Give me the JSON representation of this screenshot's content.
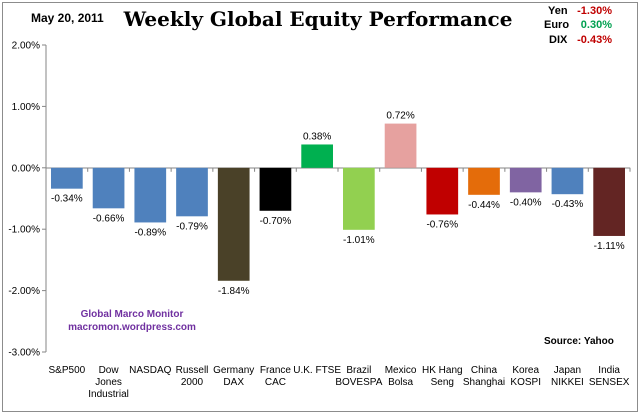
{
  "header": {
    "date": "May 20, 2011"
  },
  "currencies": [
    {
      "name": "Yen",
      "value": "-1.30%",
      "color": "#c00000"
    },
    {
      "name": "Euro",
      "value": "0.30%",
      "color": "#00a050"
    },
    {
      "name": "DIX",
      "value": "-0.43%",
      "color": "#c00000"
    }
  ],
  "watermark": {
    "line1": "Global Marco Monitor",
    "line2": "macromon.wordpress.com"
  },
  "source": "Source:  Yahoo",
  "chart_data": {
    "type": "bar",
    "title": "Weekly Global Equity Performance",
    "xlabel": "",
    "ylabel": "",
    "ylim": [
      -3.0,
      2.0
    ],
    "ytick_values": [
      2,
      1,
      0,
      -1,
      -2,
      -3
    ],
    "ytick_labels": [
      "2.00%",
      "1.00%",
      "0.00%",
      "-1.00%",
      "-2.00%",
      "-3.00%"
    ],
    "grid": false,
    "categories": [
      [
        "S&P500"
      ],
      [
        "Dow",
        "Jones",
        "Industrial"
      ],
      [
        "NASDAQ"
      ],
      [
        "Russell",
        "2000"
      ],
      [
        "Germany",
        "DAX"
      ],
      [
        "France",
        "CAC"
      ],
      [
        "U.K. FTSE"
      ],
      [
        "Brazil",
        "BOVESPA"
      ],
      [
        "Mexico",
        "Bolsa"
      ],
      [
        "HK Hang",
        "Seng"
      ],
      [
        "China",
        "Shanghai"
      ],
      [
        "Korea",
        "KOSPI"
      ],
      [
        "Japan",
        "NIKKEI"
      ],
      [
        "India",
        "SENSEX"
      ]
    ],
    "values": [
      -0.34,
      -0.66,
      -0.89,
      -0.79,
      -1.84,
      -0.7,
      0.38,
      -1.01,
      0.72,
      -0.76,
      -0.44,
      -0.4,
      -0.43,
      -1.11
    ],
    "labels": [
      "-0.34%",
      "-0.66%",
      "-0.89%",
      "-0.79%",
      "-1.84%",
      "-0.70%",
      "0.38%",
      "-1.01%",
      "0.72%",
      "-0.76%",
      "-0.44%",
      "-0.40%",
      "-0.43%",
      "-1.11%"
    ],
    "colors": [
      "#4f81bd",
      "#4f81bd",
      "#4f81bd",
      "#4f81bd",
      "#4a4128",
      "#000000",
      "#00b050",
      "#92d050",
      "#e6a19f",
      "#c00000",
      "#e46c0a",
      "#8064a2",
      "#4f81bd",
      "#632523"
    ]
  }
}
